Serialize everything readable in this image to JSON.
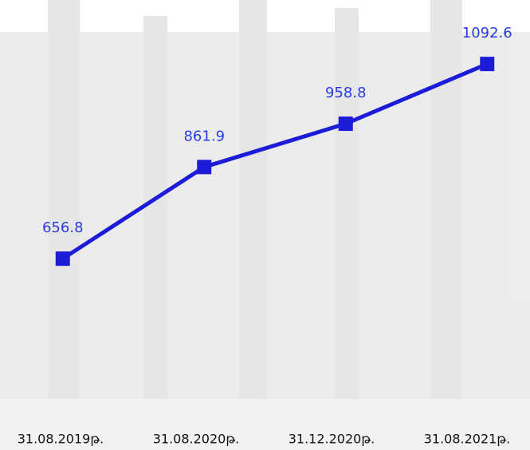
{
  "chart_data": {
    "type": "line",
    "categories": [
      "31.08.2019թ.",
      "31.08.2020թ.",
      "31.12.2020թ.",
      "31.08.2021թ."
    ],
    "series": [
      {
        "color": "#1c1cd8",
        "values": [
          656.8,
          861.9,
          958.8,
          1092.6
        ]
      }
    ],
    "ylim": [
      350,
      1150
    ]
  }
}
